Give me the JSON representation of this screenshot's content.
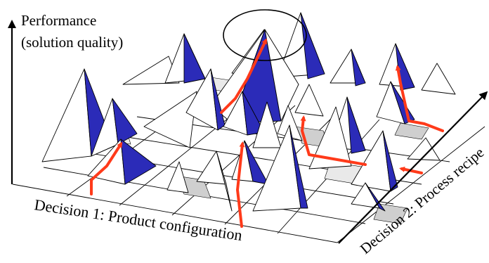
{
  "diagram": {
    "y_axis_label_line1": "Performance",
    "y_axis_label_line2": "(solution quality)",
    "x_axis_label": "Decision 1: Product configuration",
    "z_axis_label": "Decision 2: Process recipe"
  },
  "colors": {
    "peak_blue": "#2b2bb8",
    "path_red": "#ff3a1a",
    "shadow_gray": "#c8c8c8"
  }
}
